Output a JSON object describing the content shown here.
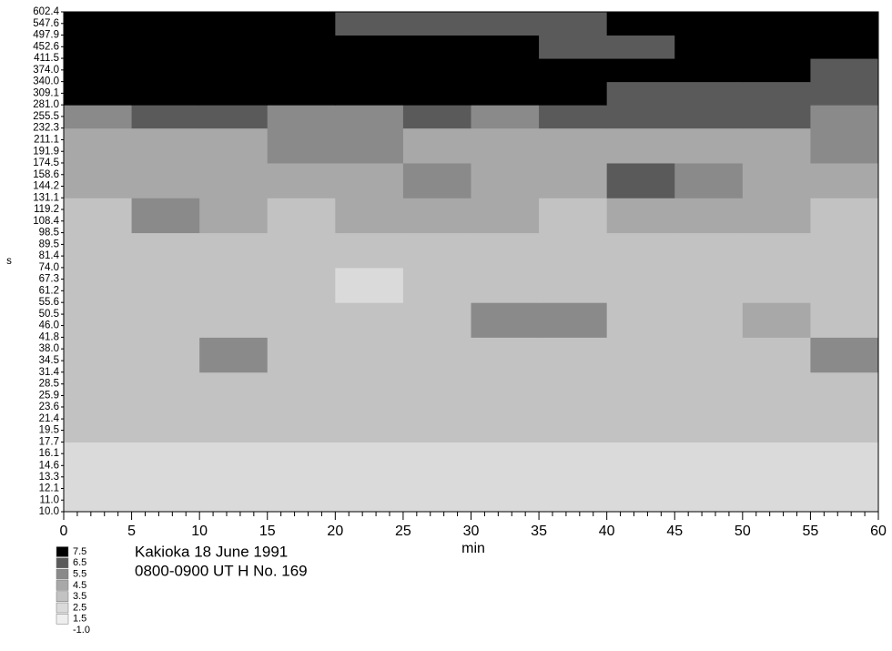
{
  "chart_data": {
    "type": "heatmap",
    "ylabel": "s",
    "xlabel": "min",
    "annotations": [
      "Kakioka 18 June 1991",
      "0800-0900 UT  H  No. 169"
    ],
    "xlim": [
      0,
      60
    ],
    "xticks": [
      0,
      5,
      10,
      15,
      20,
      25,
      30,
      35,
      40,
      45,
      50,
      55,
      60
    ],
    "xminorticks": [
      1,
      2,
      3,
      4,
      6,
      7,
      8,
      9,
      11,
      12,
      13,
      14,
      16,
      17,
      18,
      19,
      21,
      22,
      23,
      24,
      26,
      27,
      28,
      29,
      31,
      32,
      33,
      34,
      36,
      37,
      38,
      39,
      41,
      42,
      43,
      44,
      46,
      47,
      48,
      49,
      51,
      52,
      53,
      54,
      56,
      57,
      58,
      59
    ],
    "yscale": "log",
    "ylim": [
      10.0,
      602.4
    ],
    "yticks": [
      602.4,
      547.6,
      497.9,
      452.6,
      411.5,
      {
        "value": 374,
        "label": "374.0"
      },
      {
        "value": 340,
        "label": "340.0"
      },
      309.1,
      {
        "value": 281,
        "label": "281.0"
      },
      255.5,
      232.3,
      211.1,
      191.9,
      174.5,
      158.6,
      144.2,
      131.1,
      119.2,
      108.4,
      98.5,
      89.5,
      81.4,
      {
        "value": 74,
        "label": "74.0"
      },
      67.3,
      61.2,
      55.6,
      50.5,
      {
        "value": 46,
        "label": "46.0"
      },
      41.8,
      {
        "value": 38,
        "label": "38.0"
      },
      34.5,
      31.4,
      28.5,
      25.9,
      23.6,
      21.4,
      19.5,
      17.7,
      16.1,
      14.6,
      13.3,
      12.1,
      {
        "value": 11,
        "label": "11.0"
      },
      {
        "value": 10,
        "label": "10.0"
      }
    ],
    "x_bins": [
      0,
      5,
      10,
      15,
      20,
      25,
      30,
      35,
      40,
      45,
      50,
      55,
      60
    ],
    "y_bins": [
      10.0,
      13.3,
      17.7,
      23.6,
      31.4,
      41.8,
      55.6,
      74.0,
      98.5,
      131.1,
      174.5,
      232.3,
      281.0,
      340.0,
      411.5,
      497.9,
      602.4
    ],
    "z": [
      [
        2.8,
        3.2,
        3.0,
        2.9,
        3.1,
        3.0,
        3.2,
        3.0,
        2.9,
        3.1,
        3.0,
        2.8
      ],
      [
        3.2,
        3.1,
        3.3,
        3.0,
        3.2,
        3.1,
        3.3,
        3.2,
        3.1,
        3.2,
        3.0,
        3.1
      ],
      [
        3.6,
        3.6,
        3.5,
        3.7,
        3.6,
        3.6,
        3.7,
        3.6,
        3.5,
        3.6,
        3.6,
        3.5
      ],
      [
        3.8,
        3.9,
        4.0,
        3.8,
        3.9,
        3.9,
        4.0,
        3.9,
        3.8,
        3.9,
        3.8,
        3.9
      ],
      [
        4.0,
        4.1,
        5.6,
        4.1,
        4.0,
        4.1,
        4.2,
        4.1,
        4.0,
        4.1,
        4.2,
        5.6
      ],
      [
        4.2,
        4.2,
        4.3,
        4.2,
        4.1,
        4.2,
        5.7,
        5.6,
        4.3,
        4.2,
        4.6,
        4.2
      ],
      [
        4.0,
        4.1,
        4.2,
        4.1,
        3.2,
        4.2,
        4.3,
        4.2,
        4.1,
        4.2,
        4.2,
        4.1
      ],
      [
        4.2,
        4.3,
        4.2,
        4.3,
        4.2,
        4.4,
        4.3,
        4.2,
        4.3,
        4.2,
        4.3,
        4.2
      ],
      [
        4.4,
        5.6,
        4.5,
        4.4,
        4.5,
        4.6,
        4.5,
        4.4,
        4.5,
        4.6,
        4.5,
        4.4
      ],
      [
        4.6,
        4.7,
        4.6,
        4.7,
        4.6,
        5.7,
        4.7,
        4.8,
        6.6,
        5.6,
        4.8,
        4.7
      ],
      [
        5.0,
        5.1,
        5.0,
        5.6,
        5.7,
        5.2,
        5.1,
        5.2,
        5.1,
        5.2,
        5.1,
        5.6
      ],
      [
        5.8,
        6.6,
        6.6,
        5.8,
        5.9,
        6.6,
        5.9,
        6.6,
        6.7,
        6.6,
        6.6,
        5.9
      ],
      [
        7.6,
        7.6,
        7.6,
        7.6,
        7.6,
        7.6,
        7.6,
        7.6,
        6.6,
        6.6,
        6.6,
        6.6
      ],
      [
        7.6,
        7.6,
        7.6,
        7.6,
        7.6,
        7.6,
        7.6,
        7.6,
        7.6,
        7.6,
        7.6,
        6.6
      ],
      [
        7.6,
        7.6,
        7.6,
        7.6,
        7.6,
        7.6,
        7.6,
        6.6,
        6.6,
        7.6,
        7.6,
        7.6
      ],
      [
        7.6,
        7.6,
        7.6,
        7.6,
        6.6,
        6.6,
        6.6,
        6.6,
        7.6,
        7.6,
        7.6,
        7.6
      ]
    ],
    "legend": {
      "levels": [
        7.5,
        6.5,
        5.5,
        4.5,
        3.5,
        2.5,
        1.5,
        {
          "value": -1,
          "label": "-1.0"
        }
      ],
      "colors": [
        "#000000",
        "#5a5a5a",
        "#8a8a8a",
        "#a8a8a8",
        "#c2c2c2",
        "#dadada",
        "#eeeeee",
        "#ffffff"
      ]
    }
  }
}
